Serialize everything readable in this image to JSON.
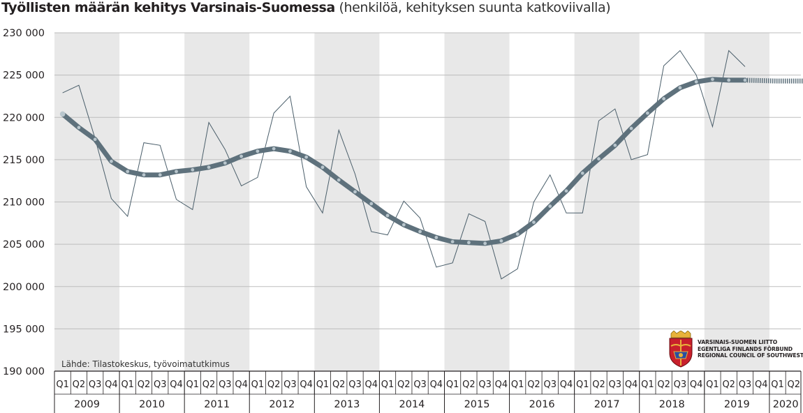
{
  "title": {
    "bold": "Työllisten määrän kehitys Varsinais-Suomessa",
    "normal": "(henkilöä, kehityksen suunta katkoviivalla)"
  },
  "source": "Lähde: Tilastokeskus, työvoimatutkimus",
  "logo": {
    "line1": "VARSINAIS-SUOMEN LIITTO",
    "line2": "EGENTLIGA FINLANDS FÖRBUND",
    "line3": "REGIONAL COUNCIL OF SOUTHWEST FINLAND"
  },
  "colors": {
    "trend": "#5e717c",
    "trend_dot": "#b9c6cd",
    "raw": "#4a5e6a",
    "band": "#e8e8e8",
    "grid": "#bdbdbd"
  },
  "chart_data": {
    "type": "line",
    "ylim": [
      190000,
      230000
    ],
    "yticks": [
      "190 000",
      "195 000",
      "200 000",
      "205 000",
      "210 000",
      "215 000",
      "220 000",
      "225 000",
      "230 000"
    ],
    "ytick_values": [
      190000,
      195000,
      200000,
      205000,
      210000,
      215000,
      220000,
      225000,
      230000
    ],
    "quarters": [
      "Q1",
      "Q2",
      "Q3",
      "Q4"
    ],
    "years": [
      "2009",
      "2010",
      "2011",
      "2012",
      "2013",
      "2014",
      "2015",
      "2016",
      "2017",
      "2018",
      "2019",
      "2020"
    ],
    "years_quarter_count": [
      4,
      4,
      4,
      4,
      4,
      4,
      4,
      4,
      4,
      4,
      4,
      2
    ],
    "grid": true,
    "series": [
      {
        "values": [
          222900,
          223800,
          217500,
          210400,
          208300,
          217000,
          216700,
          210300,
          209100,
          219400,
          216200,
          211900,
          212900,
          220500,
          222500,
          211800,
          208700,
          218500,
          213300,
          206500,
          206100,
          210100,
          208100,
          202300,
          202800,
          208600,
          207700,
          200900,
          202100,
          210000,
          213200,
          208700,
          208700,
          219600,
          221000,
          215000,
          215600,
          226100,
          227900,
          225000,
          218900,
          227900,
          226000
        ]
      },
      {
        "values": [
          220400,
          218800,
          217400,
          214800,
          213600,
          213200,
          213200,
          213600,
          213800,
          214100,
          214600,
          215400,
          216000,
          216300,
          216000,
          215300,
          214100,
          212600,
          211200,
          209800,
          208400,
          207300,
          206500,
          205800,
          205300,
          205200,
          205100,
          205400,
          206200,
          207600,
          209500,
          211300,
          213400,
          215100,
          216700,
          218700,
          220500,
          222200,
          223500,
          224200,
          224500,
          224400,
          224400
        ],
        "projection": [
          224400,
          224350,
          224300,
          224300,
          224300
        ]
      }
    ]
  }
}
